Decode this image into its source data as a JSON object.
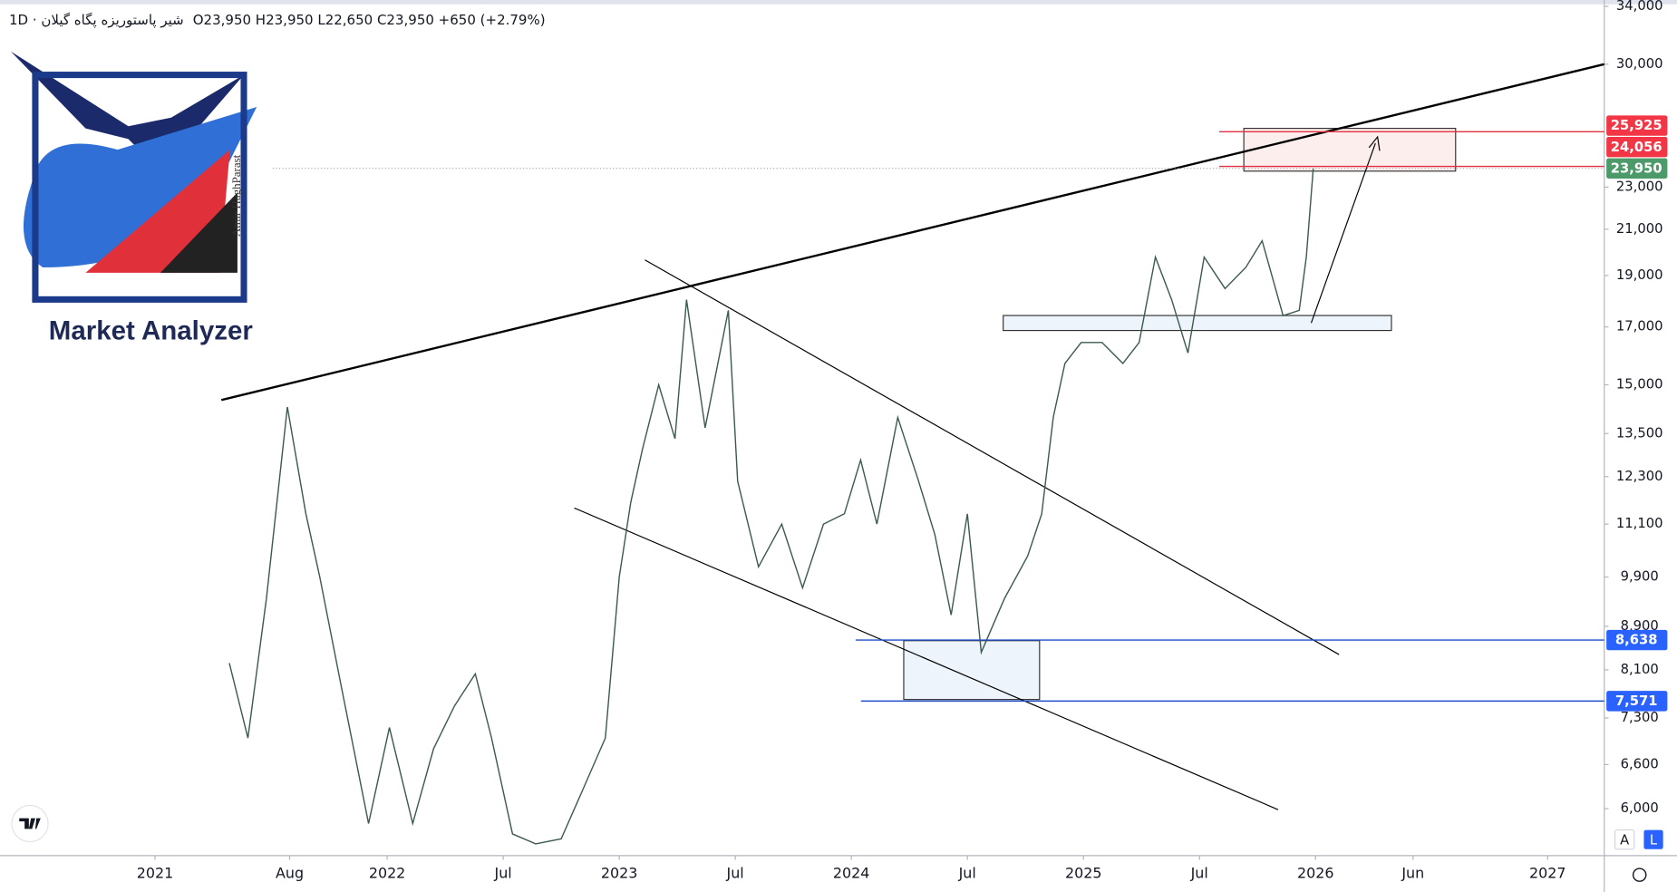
{
  "header": {
    "symbol": "شير پاستوريزه پگاه گيلان · 1D",
    "ohlc": "O23,950 H23,950 L22,650 C23,950 +650 (+2.79%)"
  },
  "logo": {
    "title": "Market Analyzer",
    "subtitle": "Amir HaghParast"
  },
  "buttons": {
    "auto": "A",
    "log": "L"
  },
  "chart_data": {
    "type": "line",
    "log_scale": true,
    "grid": false,
    "xlim": [
      2020.332,
      2027.244
    ],
    "ylim": [
      5420,
      34470
    ],
    "xticks": [
      2021,
      {
        "value": 2021.58,
        "label": "Aug"
      },
      2022,
      {
        "value": 2022.5,
        "label": "Jul"
      },
      2023,
      {
        "value": 2023.5,
        "label": "Jul"
      },
      2024,
      {
        "value": 2024.5,
        "label": "Jul"
      },
      2025,
      {
        "value": 2025.5,
        "label": "Jul"
      },
      2026,
      {
        "value": 2026.42,
        "label": "Jun"
      },
      2027
    ],
    "yticks": [
      {
        "value": 34000,
        "label": "34,000"
      },
      {
        "value": 30000,
        "label": "30,000"
      },
      {
        "value": 23000,
        "label": "23,000"
      },
      {
        "value": 21000,
        "label": "21,000"
      },
      {
        "value": 19000,
        "label": "19,000"
      },
      {
        "value": 17000,
        "label": "17,000"
      },
      {
        "value": 15000,
        "label": "15,000"
      },
      {
        "value": 13500,
        "label": "13,500"
      },
      {
        "value": 12300,
        "label": "12,300"
      },
      {
        "value": 11100,
        "label": "11,100"
      },
      {
        "value": 9900,
        "label": "9,900"
      },
      {
        "value": 8900,
        "label": "8,900"
      },
      {
        "value": 8100,
        "label": "8,100"
      },
      {
        "value": 7300,
        "label": "7,300"
      },
      {
        "value": 6600,
        "label": "6,600"
      },
      {
        "value": 6000,
        "label": "6,000"
      }
    ],
    "series": [
      {
        "color": "#3d5a4e",
        "x": [
          2021.32,
          2021.4,
          2021.48,
          2021.57,
          2021.65,
          2021.71,
          2021.8,
          2021.92,
          2022.01,
          2022.11,
          2022.2,
          2022.29,
          2022.38,
          2022.45,
          2022.54,
          2022.64,
          2022.75,
          2022.84,
          2022.94,
          2023.0,
          2023.05,
          2023.1,
          2023.17,
          2023.24,
          2023.29,
          2023.37,
          2023.47,
          2023.51,
          2023.6,
          2023.7,
          2023.79,
          2023.88,
          2023.97,
          2024.04,
          2024.11,
          2024.2,
          2024.29,
          2024.36,
          2024.43,
          2024.5,
          2024.56,
          2024.66,
          2024.76,
          2024.82,
          2024.87,
          2024.92,
          2024.99,
          2025.08,
          2025.17,
          2025.24,
          2025.31,
          2025.38,
          2025.45,
          2025.52,
          2025.61,
          2025.7,
          2025.77,
          2025.86,
          2025.93,
          2025.96,
          2025.99
        ],
        "values": [
          8220,
          6990,
          9450,
          14300,
          11350,
          9900,
          7860,
          5810,
          7150,
          5810,
          6830,
          7490,
          8030,
          6990,
          5680,
          5560,
          5620,
          6230,
          6990,
          9900,
          11640,
          13050,
          15000,
          13350,
          18030,
          13670,
          17620,
          12180,
          10120,
          11100,
          9670,
          11100,
          11350,
          12750,
          11100,
          13980,
          12180,
          10850,
          9120,
          11350,
          8410,
          9450,
          10360,
          11350,
          13980,
          15710,
          16440,
          16440,
          15710,
          16440,
          19770,
          18030,
          16070,
          19770,
          18470,
          19340,
          20480,
          17420,
          17620,
          19770,
          23950
        ]
      }
    ],
    "price_lines": [
      {
        "value": 25925,
        "label": "25,925",
        "color": "#f23645",
        "line_color": "#e03040"
      },
      {
        "value": 24056,
        "label": "24,056",
        "color": "#f23645",
        "line_color": "#e03040"
      },
      {
        "value": 23950,
        "label": "23,950",
        "color": "#4c9a6a",
        "line_color": "#9598a1"
      },
      {
        "value": 8638,
        "label": "8,638",
        "color": "#2962ff",
        "line_color": "#1e4fc9"
      },
      {
        "value": 7571,
        "label": "7,571",
        "color": "#2962ff",
        "line_color": "#1e4fc9"
      }
    ]
  }
}
